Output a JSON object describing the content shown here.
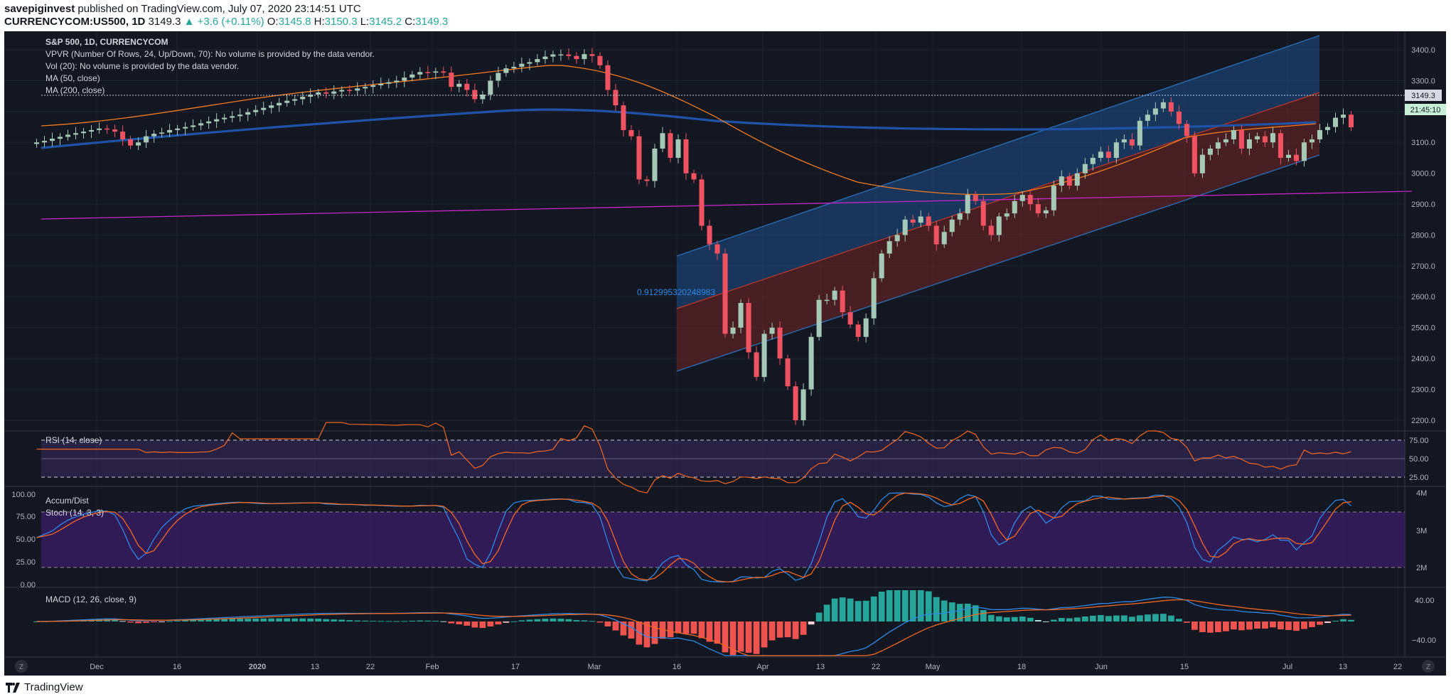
{
  "header": {
    "publisher": "savepiginvest",
    "published_on": "published on TradingView.com, July 07, 2020 23:14:51 UTC",
    "symbol": "CURRENCYCOM:US500, 1D",
    "last": "3149.3",
    "change": "▲ +3.6 (+0.11%)",
    "o_label": "O:",
    "o_val": "3145.8",
    "h_label": "H:",
    "h_val": "3150.3",
    "l_label": "L:",
    "l_val": "3145.2",
    "c_label": "C:",
    "c_val": "3149.3"
  },
  "legend": {
    "title": "S&P 500, 1D, CURRENCYCOM",
    "vpvr": "VPVR (Number Of Rows, 24, Up/Down, 70): No volume is provided by the data vendor.",
    "vol": "Vol (20): No volume is provided by the data vendor.",
    "ma50": "MA (50, close)",
    "ma200": "MA (200, close)"
  },
  "price_badges": {
    "last": "3149.3",
    "countdown": "21:45:10"
  },
  "regression_label": "0.912995320248983",
  "panels": {
    "rsi_label": "RSI (14, close)",
    "accum_label": "Accum/Dist",
    "stoch_label": "Stoch (14, 3, 3)",
    "macd_label": "MACD (12, 26, close, 9)"
  },
  "footer": {
    "brand": "TradingView",
    "zoom_left": "Z",
    "zoom_right": "Z"
  },
  "colors": {
    "background": "#131722",
    "up": "#a5c9b6",
    "down": "#ef5261",
    "ma50": "#f57c1f",
    "ma200": "#1e53a8",
    "trendline": "#c726c7",
    "channel_upper": "#2a6cb5",
    "channel_lower": "#8f2e2e",
    "rsi_line": "#f5671f",
    "stoch_k": "#2e8ae6",
    "stoch_d": "#f5671f",
    "macd_line": "#2e8ae6",
    "macd_signal": "#f5671f",
    "hist_up": "#26a69a",
    "hist_down": "#ef5350"
  },
  "chart_data": [
    {
      "type": "candlestick",
      "title": "S&P 500, 1D, CURRENCYCOM",
      "x_tick_labels": [
        "Dec",
        "16",
        "2020",
        "13",
        "22",
        "Feb",
        "17",
        "Mar",
        "16",
        "Apr",
        "13",
        "22",
        "May",
        "18",
        "Jun",
        "15",
        "Jul",
        "13",
        "22"
      ],
      "y_ticks": [
        2200,
        2300,
        2400,
        2500,
        2600,
        2700,
        2800,
        2900,
        3000,
        3100,
        3200,
        3300,
        3400
      ],
      "ylim": [
        2170,
        3460
      ],
      "candles_approx_close": [
        3100,
        3105,
        3112,
        3118,
        3125,
        3130,
        3135,
        3140,
        3145,
        3142,
        3135,
        3110,
        3090,
        3100,
        3120,
        3128,
        3132,
        3140,
        3145,
        3150,
        3155,
        3162,
        3168,
        3175,
        3180,
        3185,
        3190,
        3198,
        3205,
        3212,
        3220,
        3228,
        3235,
        3240,
        3248,
        3255,
        3262,
        3258,
        3265,
        3270,
        3268,
        3275,
        3280,
        3285,
        3290,
        3295,
        3300,
        3310,
        3320,
        3328,
        3326,
        3330,
        3326,
        3280,
        3290,
        3270,
        3240,
        3255,
        3300,
        3325,
        3340,
        3345,
        3355,
        3360,
        3370,
        3378,
        3385,
        3385,
        3380,
        3370,
        3386,
        3380,
        3350,
        3270,
        3220,
        3140,
        3120,
        2980,
        2975,
        3080,
        3130,
        3050,
        3110,
        3000,
        2980,
        2830,
        2770,
        2740,
        2480,
        2500,
        2580,
        2420,
        2340,
        2480,
        2500,
        2400,
        2310,
        2200,
        2300,
        2470,
        2590,
        2590,
        2620,
        2550,
        2510,
        2470,
        2530,
        2660,
        2740,
        2780,
        2800,
        2850,
        2840,
        2860,
        2830,
        2770,
        2810,
        2850,
        2870,
        2930,
        2910,
        2830,
        2800,
        2860,
        2870,
        2910,
        2930,
        2900,
        2870,
        2880,
        2960,
        2990,
        2960,
        3000,
        3030,
        3050,
        3070,
        3050,
        3100,
        3110,
        3090,
        3170,
        3190,
        3210,
        3230,
        3200,
        3160,
        3120,
        3000,
        3060,
        3080,
        3100,
        3110,
        3140,
        3080,
        3110,
        3120,
        3100,
        3130,
        3050,
        3060,
        3040,
        3100,
        3110,
        3140,
        3150,
        3180,
        3190,
        3149
      ]
    },
    {
      "type": "line",
      "title": "RSI (14, close)",
      "y_ticks": [
        25,
        50,
        75
      ],
      "ylim": [
        20,
        80
      ],
      "bands": [
        30,
        70
      ]
    },
    {
      "type": "line",
      "title": "Stoch (14, 3, 3)",
      "y_ticks_left": [
        0,
        25,
        50,
        75,
        100
      ],
      "y_ticks_right": [
        "2M",
        "3M",
        "4M"
      ],
      "ylim": [
        0,
        100
      ],
      "bands": [
        20,
        80
      ]
    },
    {
      "type": "bar",
      "title": "MACD (12, 26, close, 9)",
      "y_ticks": [
        -40,
        40
      ],
      "ylim": [
        -60,
        60
      ]
    }
  ]
}
